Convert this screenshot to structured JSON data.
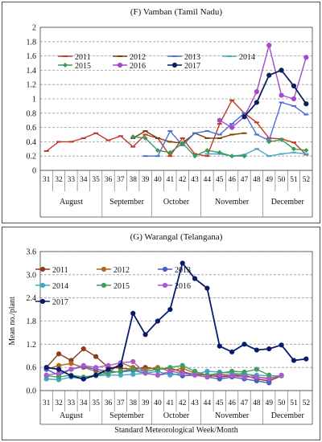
{
  "chart_data": [
    {
      "type": "line",
      "title": "(F) Vamban (Tamil Nadu)",
      "ylim": [
        0,
        2
      ],
      "yticks": [
        "0",
        "0.2",
        "0.4",
        "0.6",
        "0.8",
        "1",
        "1.2",
        "1.4",
        "1.6",
        "1.8",
        "2"
      ],
      "ylabel": "",
      "xlabel": "",
      "grid": true,
      "legend_position": "top",
      "weeks": [
        "31",
        "32",
        "33",
        "34",
        "35",
        "36",
        "37",
        "38",
        "39",
        "40",
        "41",
        "42",
        "43",
        "44",
        "45",
        "46",
        "47",
        "48",
        "49",
        "50",
        "51",
        "52"
      ],
      "months": [
        {
          "label": "August",
          "from": 31,
          "to": 35
        },
        {
          "label": "September",
          "from": 36,
          "to": 39
        },
        {
          "label": "October",
          "from": 40,
          "to": 43
        },
        {
          "label": "November",
          "from": 44,
          "to": 48
        },
        {
          "label": "December",
          "from": 49,
          "to": 52
        }
      ],
      "series": [
        {
          "name": "2011",
          "color": "#c0392b",
          "marker": "dash",
          "values": [
            0.27,
            0.4,
            0.4,
            0.45,
            0.52,
            0.42,
            0.48,
            0.33,
            0.5,
            0.45,
            0.2,
            0.45,
            0.23,
            0.2,
            0.65,
            0.98,
            0.8,
            0.67,
            0.45,
            0.44,
            0.39,
            0.22
          ]
        },
        {
          "name": "2012",
          "color": "#7b3f00",
          "marker": "dash",
          "values": [
            null,
            null,
            null,
            null,
            null,
            null,
            null,
            0.45,
            0.55,
            0.45,
            0.4,
            0.38,
            0.52,
            0.45,
            0.45,
            0.5,
            0.52,
            null,
            null,
            null,
            null,
            null
          ]
        },
        {
          "name": "2013",
          "color": "#4a6fd6",
          "marker": "dash",
          "values": [
            null,
            null,
            null,
            null,
            null,
            null,
            null,
            null,
            0.2,
            0.2,
            0.55,
            0.35,
            0.52,
            0.55,
            0.5,
            0.65,
            0.8,
            0.5,
            0.42,
            0.95,
            0.9,
            0.78
          ]
        },
        {
          "name": "2014",
          "color": "#4aa8c4",
          "marker": "dash",
          "values": [
            null,
            null,
            null,
            null,
            null,
            null,
            null,
            null,
            null,
            null,
            null,
            null,
            null,
            0.23,
            0.23,
            0.2,
            0.22,
            0.3,
            0.2,
            0.23,
            0.25,
            0.23
          ]
        },
        {
          "name": "2015",
          "color": "#3a9a5a",
          "marker": "diamond",
          "values": [
            null,
            null,
            null,
            null,
            null,
            null,
            null,
            0.47,
            0.45,
            0.28,
            0.25,
            0.38,
            0.2,
            0.28,
            0.25,
            0.2,
            0.2,
            null,
            0.4,
            0.43,
            0.3,
            0.28
          ]
        },
        {
          "name": "2016",
          "color": "#a64ac9",
          "marker": "circle",
          "values": [
            null,
            null,
            null,
            null,
            null,
            null,
            null,
            null,
            null,
            null,
            null,
            null,
            null,
            null,
            0.7,
            0.6,
            0.75,
            1.1,
            1.75,
            1.05,
            1.0,
            1.58
          ]
        },
        {
          "name": "2017",
          "color": "#0d1f5c",
          "marker": "circle",
          "values": [
            null,
            null,
            null,
            null,
            null,
            null,
            null,
            null,
            null,
            null,
            null,
            null,
            null,
            null,
            null,
            null,
            0.75,
            0.95,
            1.33,
            1.4,
            1.18,
            0.93
          ]
        }
      ]
    },
    {
      "type": "line",
      "title": "(G) Warangal (Telangana)",
      "ylim": [
        0,
        3.6
      ],
      "yticks": [
        "0.0",
        "0.6",
        "1.2",
        "1.8",
        "2.4",
        "3.0",
        "3.6"
      ],
      "ylabel": "Mean no./plant",
      "xlabel": "Standard Meteorological Week/Month",
      "grid": true,
      "legend_position": "top-left",
      "weeks": [
        "31",
        "32",
        "33",
        "34",
        "35",
        "36",
        "37",
        "38",
        "39",
        "40",
        "41",
        "42",
        "43",
        "44",
        "45",
        "46",
        "47",
        "48",
        "49",
        "50",
        "51",
        "52"
      ],
      "months": [
        {
          "label": "August",
          "from": 31,
          "to": 35
        },
        {
          "label": "September",
          "from": 36,
          "to": 39
        },
        {
          "label": "October",
          "from": 40,
          "to": 43
        },
        {
          "label": "November",
          "from": 44,
          "to": 48
        },
        {
          "label": "December",
          "from": 49,
          "to": 52
        }
      ],
      "series": [
        {
          "name": "2011",
          "color": "#8b3a1a",
          "marker": "circle",
          "values": [
            0.6,
            0.95,
            0.78,
            1.08,
            0.88,
            0.6,
            0.58,
            0.55,
            0.6,
            0.55,
            0.58,
            0.48,
            0.42,
            0.4,
            0.35,
            0.38,
            0.4,
            0.3,
            0.25,
            0.38,
            null,
            null
          ]
        },
        {
          "name": "2012",
          "color": "#b5651d",
          "marker": "circle",
          "values": [
            0.55,
            0.65,
            0.7,
            0.6,
            0.5,
            0.45,
            0.72,
            0.6,
            0.55,
            0.6,
            0.5,
            0.58,
            0.45,
            0.4,
            0.42,
            0.4,
            0.45,
            0.35,
            0.32,
            0.38,
            null,
            null
          ]
        },
        {
          "name": "2013",
          "color": "#4a5fc1",
          "marker": "circle",
          "values": [
            0.55,
            0.4,
            0.55,
            0.62,
            0.55,
            0.5,
            0.48,
            0.52,
            0.45,
            0.4,
            0.45,
            0.38,
            0.4,
            0.35,
            0.3,
            0.35,
            0.3,
            0.25,
            0.2,
            null,
            null,
            null
          ]
        },
        {
          "name": "2014",
          "color": "#3fa7c7",
          "marker": "circle",
          "values": [
            0.3,
            0.28,
            0.35,
            0.3,
            0.38,
            0.4,
            0.4,
            0.42,
            0.45,
            0.5,
            0.4,
            0.45,
            0.42,
            0.5,
            0.48,
            0.45,
            0.42,
            0.4,
            0.38,
            0.38,
            null,
            null
          ]
        },
        {
          "name": "2015",
          "color": "#3f9f5f",
          "marker": "circle",
          "values": [
            0.38,
            0.35,
            0.4,
            0.35,
            0.4,
            0.45,
            0.5,
            0.55,
            0.5,
            0.55,
            0.6,
            0.65,
            0.5,
            0.4,
            0.45,
            0.5,
            0.48,
            0.55,
            0.4,
            null,
            null,
            null
          ]
        },
        {
          "name": "2016",
          "color": "#a95bc9",
          "marker": "circle",
          "values": [
            0.4,
            0.45,
            0.55,
            0.65,
            0.6,
            0.65,
            0.72,
            0.75,
            0.45,
            0.4,
            0.5,
            0.45,
            0.4,
            0.35,
            0.4,
            0.38,
            0.35,
            0.35,
            0.3,
            0.4,
            null,
            null
          ]
        },
        {
          "name": "2017",
          "color": "#0a1a6b",
          "marker": "circle",
          "values": [
            0.6,
            0.55,
            0.38,
            0.3,
            0.4,
            0.55,
            0.65,
            2.0,
            1.45,
            1.8,
            2.1,
            3.3,
            2.9,
            2.65,
            1.15,
            1.0,
            1.2,
            1.05,
            1.08,
            1.18,
            0.78,
            0.82
          ]
        }
      ]
    }
  ]
}
